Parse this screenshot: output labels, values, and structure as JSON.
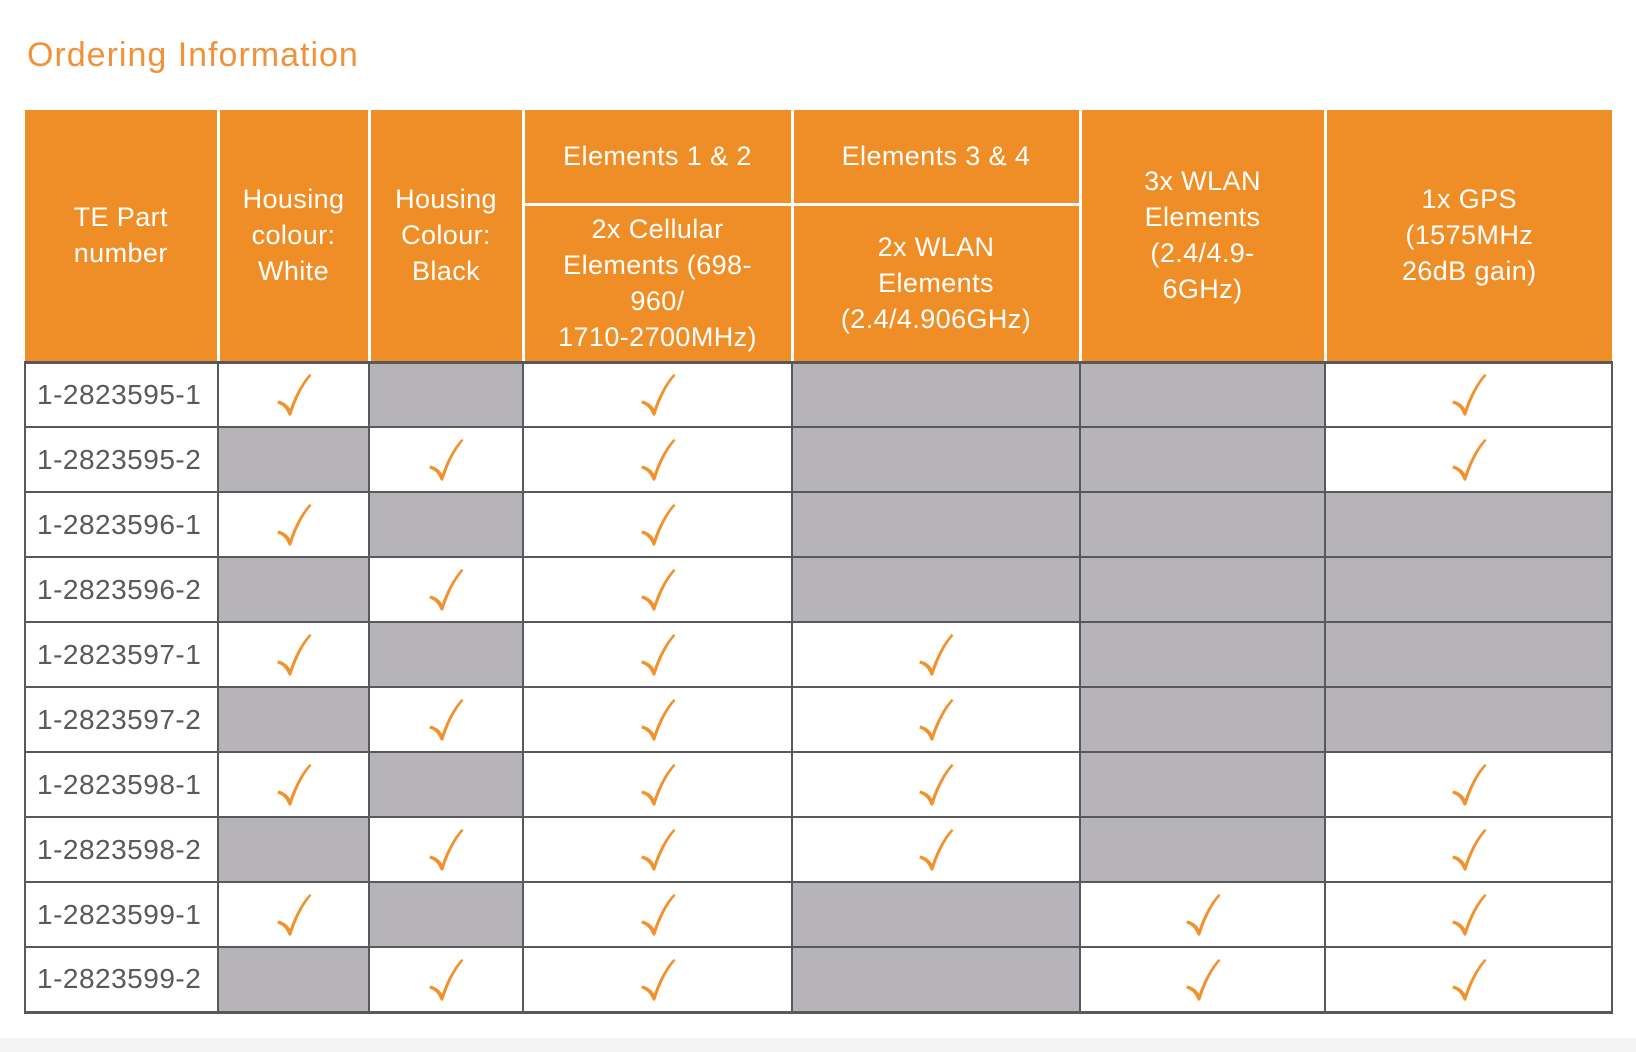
{
  "page": {
    "title": "Ordering Information"
  },
  "colors": {
    "header_orange": "#EF8E26",
    "title_orange": "#F0923A",
    "check_orange": "#F0922D",
    "na_cell_gray": "#B6B4B8",
    "grid_dark_gray": "#58595B",
    "part_number_text": "#58595B",
    "bottom_strip_gray": "#F4F4F5",
    "header_text": "#FFFFFF"
  },
  "table": {
    "header": {
      "te_part": "TE Part\nnumber",
      "housing_white": "Housing\ncolour:\nWhite",
      "housing_black": "Housing\nColour:\nBlack",
      "elements12_group": "Elements 1 & 2",
      "elements12_sub": "2x Cellular\nElements (698-\n960/\n1710-2700MHz)",
      "elements34_group": "Elements 3 & 4",
      "elements34_sub": "2x WLAN\nElements\n(2.4/4.906GHz)",
      "wlan3x": "3x WLAN\nElements\n(2.4/4.9-\n6GHz)",
      "gps": "1x GPS\n(1575MHz\n26dB gain)"
    },
    "feature_columns": [
      "housing_white",
      "housing_black",
      "cellular_2x",
      "wlan_2x",
      "wlan_3x",
      "gps_1x"
    ],
    "rows": [
      {
        "part": "1-2823595-1",
        "checks": [
          true,
          false,
          true,
          false,
          false,
          true
        ]
      },
      {
        "part": "1-2823595-2",
        "checks": [
          false,
          true,
          true,
          false,
          false,
          true
        ]
      },
      {
        "part": "1-2823596-1",
        "checks": [
          true,
          false,
          true,
          false,
          false,
          false
        ]
      },
      {
        "part": "1-2823596-2",
        "checks": [
          false,
          true,
          true,
          false,
          false,
          false
        ]
      },
      {
        "part": "1-2823597-1",
        "checks": [
          true,
          false,
          true,
          true,
          false,
          false
        ]
      },
      {
        "part": "1-2823597-2",
        "checks": [
          false,
          true,
          true,
          true,
          false,
          false
        ]
      },
      {
        "part": "1-2823598-1",
        "checks": [
          true,
          false,
          true,
          true,
          false,
          true
        ]
      },
      {
        "part": "1-2823598-2",
        "checks": [
          false,
          true,
          true,
          true,
          false,
          true
        ]
      },
      {
        "part": "1-2823599-1",
        "checks": [
          true,
          false,
          true,
          false,
          true,
          true
        ]
      },
      {
        "part": "1-2823599-2",
        "checks": [
          false,
          true,
          true,
          false,
          true,
          true
        ]
      }
    ]
  }
}
